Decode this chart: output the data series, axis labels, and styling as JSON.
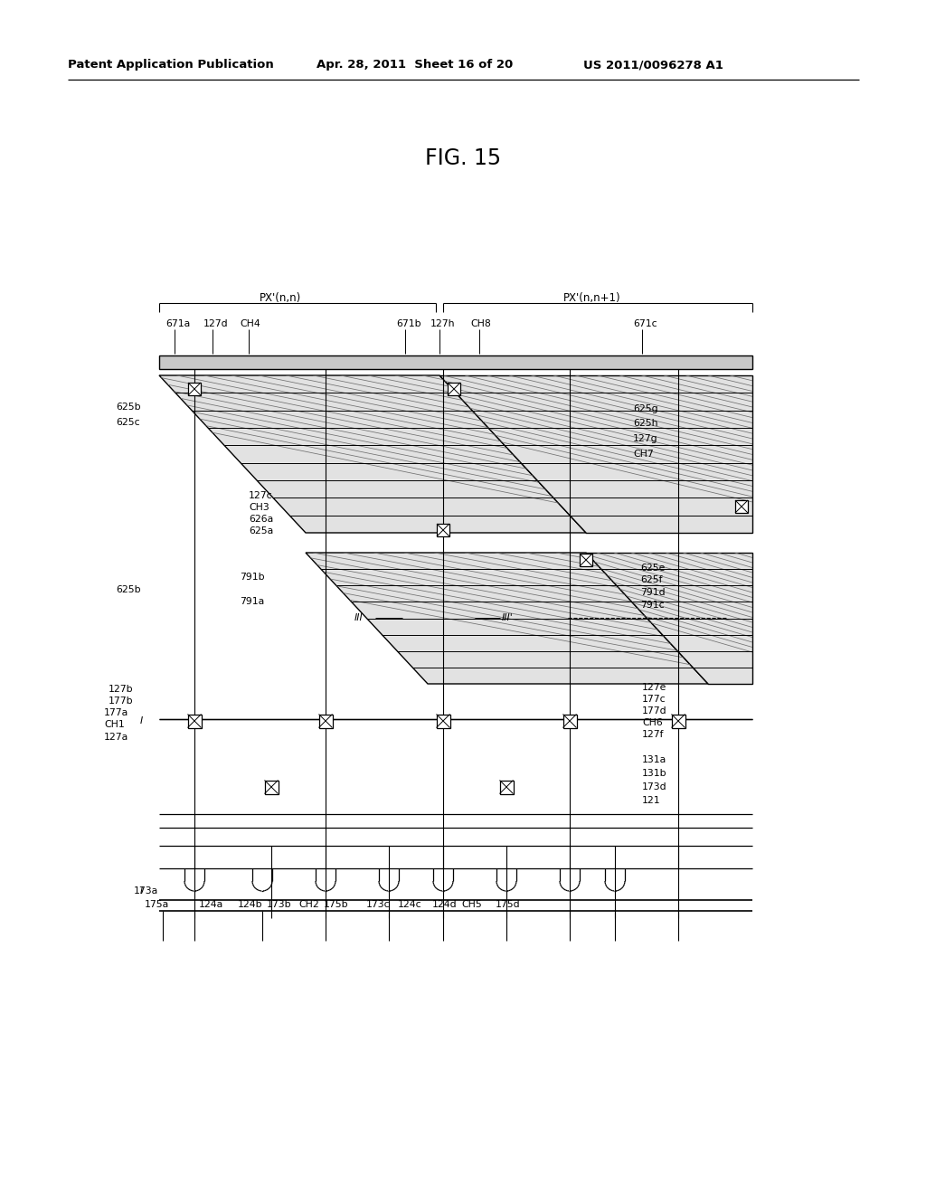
{
  "bg_color": "#ffffff",
  "header_text": "Patent Application Publication",
  "header_date": "Apr. 28, 2011  Sheet 16 of 20",
  "header_patent": "US 2011/0096278 A1",
  "fig_title": "FIG. 15",
  "label_font_size": 7.8,
  "line_color": "#000000"
}
